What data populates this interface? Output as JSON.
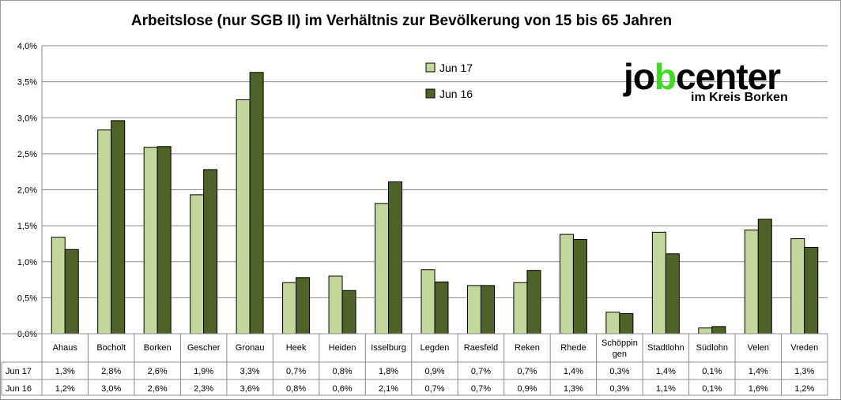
{
  "chart_data": {
    "type": "bar",
    "title": "Arbeitslose (nur SGB II) im Verhältnis zur Bevölkerung von 15 bis 65 Jahren",
    "categories": [
      "Ahaus",
      "Bocholt",
      "Borken",
      "Gescher",
      "Gronau",
      "Heek",
      "Heiden",
      "Isselburg",
      "Legden",
      "Raesfeld",
      "Reken",
      "Rhede",
      "Schöppin gen",
      "Stadtlohn",
      "Südlohn",
      "Velen",
      "Vreden"
    ],
    "category_lines": [
      [
        "Ahaus"
      ],
      [
        "Bocholt"
      ],
      [
        "Borken"
      ],
      [
        "Gescher"
      ],
      [
        "Gronau"
      ],
      [
        "Heek"
      ],
      [
        "Heiden"
      ],
      [
        "Isselburg"
      ],
      [
        "Legden"
      ],
      [
        "Raesfeld"
      ],
      [
        "Reken"
      ],
      [
        "Rhede"
      ],
      [
        "Schöppin",
        "gen"
      ],
      [
        "Stadtlohn"
      ],
      [
        "Südlohn"
      ],
      [
        "Velen"
      ],
      [
        "Vreden"
      ]
    ],
    "series": [
      {
        "name": "Jun 17",
        "color": "#c4d79b",
        "values": [
          1.34,
          2.83,
          2.59,
          1.93,
          3.25,
          0.71,
          0.8,
          1.81,
          0.89,
          0.67,
          0.71,
          1.38,
          0.3,
          1.41,
          0.08,
          1.44,
          1.32
        ],
        "labels": [
          "1,3%",
          "2,8%",
          "2,6%",
          "1,9%",
          "3,3%",
          "0,7%",
          "0,8%",
          "1,8%",
          "0,9%",
          "0,7%",
          "0,7%",
          "1,4%",
          "0,3%",
          "1,4%",
          "0,1%",
          "1,4%",
          "1,3%"
        ]
      },
      {
        "name": "Jun 16",
        "color": "#4f6228",
        "values": [
          1.17,
          2.96,
          2.6,
          2.28,
          3.63,
          0.78,
          0.6,
          2.11,
          0.72,
          0.67,
          0.88,
          1.31,
          0.28,
          1.11,
          0.1,
          1.59,
          1.2
        ],
        "labels": [
          "1,2%",
          "3,0%",
          "2,6%",
          "2,3%",
          "3,6%",
          "0,8%",
          "0,6%",
          "2,1%",
          "0,7%",
          "0,7%",
          "0,9%",
          "1,3%",
          "0,3%",
          "1,1%",
          "0,1%",
          "1,6%",
          "1,2%"
        ]
      }
    ],
    "y_ticks": [
      {
        "value": 0.0,
        "label": "0,0%"
      },
      {
        "value": 0.5,
        "label": "0,5%"
      },
      {
        "value": 1.0,
        "label": "1,0%"
      },
      {
        "value": 1.5,
        "label": "1,5%"
      },
      {
        "value": 2.0,
        "label": "2,0%"
      },
      {
        "value": 2.5,
        "label": "2,5%"
      },
      {
        "value": 3.0,
        "label": "3,0%"
      },
      {
        "value": 3.5,
        "label": "3,5%"
      },
      {
        "value": 4.0,
        "label": "4,0%"
      }
    ],
    "ylim": [
      0,
      4.0
    ],
    "grid": true,
    "legend_position": "top-center",
    "data_table": true
  },
  "logo": {
    "part1": "jo",
    "part2": "b",
    "part3": "center",
    "subtitle": "im Kreis Borken",
    "accent_color": "#3ddc1e"
  }
}
